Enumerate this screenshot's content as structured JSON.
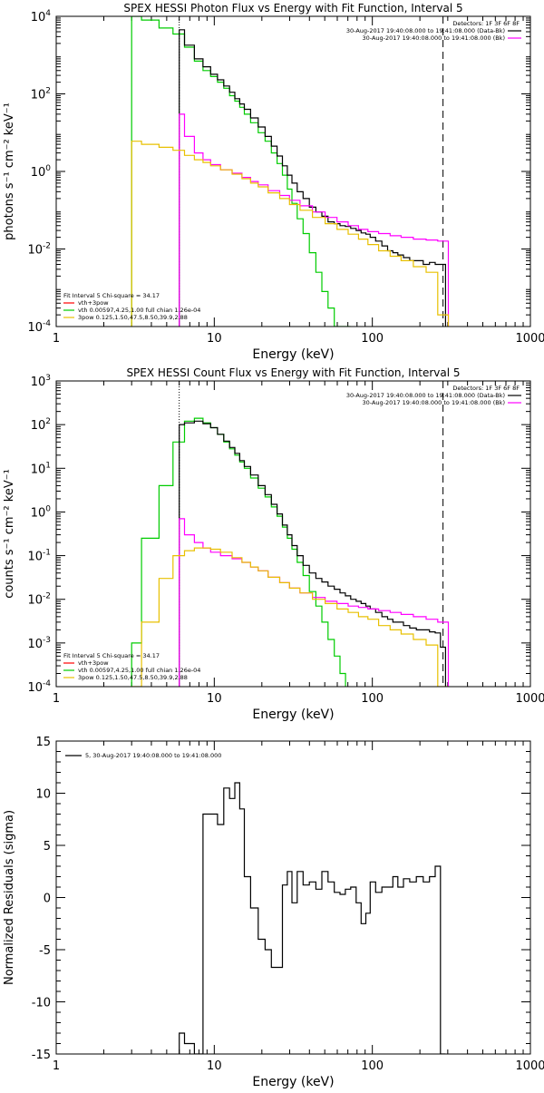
{
  "chart_data": [
    {
      "type": "line",
      "title": "SPEX HESSI Photon Flux vs Energy with Fit Function, Interval 5",
      "xlabel": "Energy (keV)",
      "ylabel": "photons s⁻¹ cm⁻² keV⁻¹",
      "xscale": "log",
      "yscale": "log",
      "xlim": [
        1,
        1000
      ],
      "ylim": [
        0.0001,
        10000
      ],
      "xticks": [
        {
          "v": 1,
          "label": "1"
        },
        {
          "v": 10,
          "label": "10"
        },
        {
          "v": 100,
          "label": "100"
        },
        {
          "v": 1000,
          "label": "1000"
        }
      ],
      "yticks": [
        {
          "v": 0.0001,
          "base": "10",
          "exp": "-4"
        },
        {
          "v": 0.01,
          "base": "10",
          "exp": "-2"
        },
        {
          "v": 1,
          "base": "10",
          "exp": "0"
        },
        {
          "v": 100,
          "base": "10",
          "exp": "2"
        },
        {
          "v": 10000,
          "base": "10",
          "exp": "4"
        }
      ],
      "legend_top": {
        "position": "top-right",
        "header": "Detectors: 1F 3F 6F 8F",
        "entries": [
          {
            "label": "30-Aug-2017 19:40:08.000 to 19:41:08.000 (Data-Bk)",
            "color": "#000000"
          },
          {
            "label": "30-Aug-2017 19:40:08.000 to 19:41:08.000 (Bk)",
            "color": "#ff00ff"
          }
        ]
      },
      "legend_bottom": {
        "position": "bottom-left",
        "header": "Fit Interval 5   Chi-square = 34.17",
        "entries": [
          {
            "label": "vth+3pow",
            "color": "#ff0000"
          },
          {
            "label": "vth 0.00597,4.25,1.00  full chian 1.26e-04",
            "color": "#00cc00"
          },
          {
            "label": "3pow 0.125,1.50,47.5,8.50,39.9,2.88",
            "color": "#e8c000"
          }
        ]
      },
      "vlines": [
        {
          "x": 6,
          "style": "dotted"
        },
        {
          "x": 280,
          "style": "dashed"
        }
      ],
      "series": [
        {
          "color": "#00cc00",
          "x": [
            3.0,
            4.0,
            5.0,
            6.0,
            7.0,
            8.0,
            9.0,
            10.0,
            11.0,
            12.0,
            13.0,
            14.0,
            15.0,
            16.0,
            18.0,
            20.0,
            22.0,
            24.0,
            26.0,
            28.0,
            30.0,
            32.0,
            35.0,
            38.0,
            42.0,
            46.0,
            50.0,
            55.0,
            60.0,
            65.0,
            70.0
          ],
          "y": [
            10000,
            8000,
            5000,
            3500,
            1600,
            700,
            400,
            280,
            200,
            140,
            90,
            65,
            45,
            30,
            18,
            10,
            6,
            3,
            1.6,
            0.8,
            0.35,
            0.15,
            0.06,
            0.025,
            0.008,
            0.0025,
            0.0008,
            0.0003,
            0.0001,
            4e-05,
            4e-05
          ]
        },
        {
          "color": "#000000",
          "x": [
            6.0,
            7.0,
            8.0,
            9.0,
            10.0,
            11.0,
            12.0,
            13.0,
            14.0,
            15.0,
            16.0,
            18.0,
            20.0,
            22.0,
            24.0,
            26.0,
            28.0,
            30.0,
            32.0,
            35.0,
            38.0,
            42.0,
            46.0,
            50.0,
            55.0,
            60.0,
            65.0,
            70.0,
            76.0,
            82.0,
            88.0,
            94.0,
            100.0,
            110.0,
            120.0,
            130.0,
            140.0,
            150.0,
            165.0,
            180.0,
            200.0,
            220.0,
            240.0,
            260.0,
            280.0
          ],
          "y": [
            4500,
            1800,
            800,
            500,
            320,
            230,
            160,
            110,
            75,
            55,
            40,
            24,
            14,
            8,
            4.5,
            2.5,
            1.4,
            0.8,
            0.5,
            0.3,
            0.2,
            0.12,
            0.09,
            0.07,
            0.05,
            0.045,
            0.04,
            0.038,
            0.034,
            0.03,
            0.026,
            0.024,
            0.02,
            0.016,
            0.012,
            0.009,
            0.008,
            0.007,
            0.006,
            0.005,
            0.005,
            0.004,
            0.0045,
            0.004,
            0.004
          ]
        },
        {
          "color": "#ff00ff",
          "x": [
            6.0,
            7.0,
            8.0,
            9.0,
            10.0,
            12.0,
            14.0,
            16.0,
            18.0,
            20.0,
            24.0,
            28.0,
            32.0,
            38.0,
            46.0,
            55.0,
            65.0,
            76.0,
            88.0,
            100.0,
            120.0,
            140.0,
            165.0,
            200.0,
            240.0,
            280.0
          ],
          "y": [
            30,
            8,
            3,
            2,
            1.5,
            1.1,
            0.9,
            0.7,
            0.55,
            0.45,
            0.32,
            0.24,
            0.18,
            0.13,
            0.09,
            0.065,
            0.05,
            0.04,
            0.032,
            0.028,
            0.025,
            0.022,
            0.02,
            0.018,
            0.017,
            0.016
          ]
        },
        {
          "color": "#e8c000",
          "x": [
            3.0,
            4.0,
            5.0,
            6.0,
            7.0,
            8.0,
            9.0,
            10.0,
            12.0,
            14.0,
            16.0,
            18.0,
            20.0,
            24.0,
            28.0,
            32.0,
            38.0,
            46.0,
            55.0,
            65.0,
            76.0,
            88.0,
            100.0,
            120.0,
            140.0,
            165.0,
            200.0,
            240.0,
            280.0
          ],
          "y": [
            6,
            5,
            4.2,
            3.5,
            2.6,
            2,
            1.7,
            1.4,
            1.1,
            0.85,
            0.65,
            0.5,
            0.4,
            0.28,
            0.2,
            0.14,
            0.1,
            0.065,
            0.045,
            0.032,
            0.024,
            0.018,
            0.013,
            0.009,
            0.0065,
            0.005,
            0.0035,
            0.0025,
            0.0002
          ]
        }
      ]
    },
    {
      "type": "line",
      "title": "SPEX HESSI Count Flux vs Energy with Fit Function, Interval 5",
      "xlabel": "Energy (keV)",
      "ylabel": "counts s⁻¹ cm⁻² keV⁻¹",
      "xscale": "log",
      "yscale": "log",
      "xlim": [
        1,
        1000
      ],
      "ylim": [
        0.0001,
        1000
      ],
      "xticks": [
        {
          "v": 1,
          "label": "1"
        },
        {
          "v": 10,
          "label": "10"
        },
        {
          "v": 100,
          "label": "100"
        },
        {
          "v": 1000,
          "label": "1000"
        }
      ],
      "yticks": [
        {
          "v": 0.0001,
          "base": "10",
          "exp": "-4"
        },
        {
          "v": 0.001,
          "base": "10",
          "exp": "-3"
        },
        {
          "v": 0.01,
          "base": "10",
          "exp": "-2"
        },
        {
          "v": 0.1,
          "base": "10",
          "exp": "-1"
        },
        {
          "v": 1,
          "base": "10",
          "exp": "0"
        },
        {
          "v": 10,
          "base": "10",
          "exp": "1"
        },
        {
          "v": 100,
          "base": "10",
          "exp": "2"
        },
        {
          "v": 1000,
          "base": "10",
          "exp": "3"
        }
      ],
      "legend_top": {
        "position": "top-right",
        "header": "Detectors: 1F 3F 6F 8F",
        "entries": [
          {
            "label": "30-Aug-2017 19:40:08.000 to 19:41:08.000 (Data-Bk)",
            "color": "#000000"
          },
          {
            "label": "30-Aug-2017 19:40:08.000 to 19:41:08.000 (Bk)",
            "color": "#ff00ff"
          }
        ]
      },
      "legend_bottom": {
        "position": "bottom-left",
        "header": "Fit Interval 5   Chi-square = 34.17",
        "entries": [
          {
            "label": "vth+3pow",
            "color": "#ff0000"
          },
          {
            "label": "vth 0.00597,4.25,1.00  full chian 1.26e-04",
            "color": "#00cc00"
          },
          {
            "label": "3pow 0.125,1.50,47.5,8.50,39.9,2.88",
            "color": "#e8c000"
          }
        ]
      },
      "vlines": [
        {
          "x": 6,
          "style": "dotted"
        },
        {
          "x": 280,
          "style": "dashed"
        }
      ],
      "series": [
        {
          "color": "#00cc00",
          "x": [
            3.0,
            4.0,
            5.0,
            6.0,
            7.0,
            8.0,
            9.0,
            10.0,
            11.0,
            12.0,
            13.0,
            14.0,
            15.0,
            16.0,
            18.0,
            20.0,
            22.0,
            24.0,
            26.0,
            28.0,
            30.0,
            32.0,
            35.0,
            38.0,
            42.0,
            46.0,
            50.0,
            55.0,
            60.0,
            65.0
          ],
          "y": [
            0.001,
            0.25,
            4,
            40,
            120,
            140,
            110,
            85,
            60,
            40,
            28,
            20,
            14,
            10,
            6,
            3.5,
            2.2,
            1.3,
            0.8,
            0.45,
            0.25,
            0.14,
            0.07,
            0.035,
            0.015,
            0.007,
            0.003,
            0.0012,
            0.0005,
            0.0002
          ]
        },
        {
          "color": "#000000",
          "x": [
            6.0,
            7.0,
            8.0,
            9.0,
            10.0,
            11.0,
            12.0,
            13.0,
            14.0,
            15.0,
            16.0,
            18.0,
            20.0,
            22.0,
            24.0,
            26.0,
            28.0,
            30.0,
            32.0,
            35.0,
            38.0,
            42.0,
            46.0,
            50.0,
            55.0,
            60.0,
            65.0,
            70.0,
            76.0,
            82.0,
            88.0,
            94.0,
            100.0,
            110.0,
            120.0,
            130.0,
            140.0,
            150.0,
            165.0,
            180.0,
            200.0,
            220.0,
            240.0,
            260.0,
            280.0
          ],
          "y": [
            100,
            110,
            120,
            105,
            85,
            60,
            42,
            30,
            22,
            15,
            11,
            7,
            4,
            2.5,
            1.5,
            0.9,
            0.5,
            0.3,
            0.17,
            0.1,
            0.06,
            0.04,
            0.03,
            0.025,
            0.02,
            0.017,
            0.014,
            0.012,
            0.01,
            0.009,
            0.008,
            0.007,
            0.006,
            0.005,
            0.004,
            0.0035,
            0.003,
            0.003,
            0.0025,
            0.0022,
            0.002,
            0.002,
            0.0018,
            0.0017,
            0.0008
          ]
        },
        {
          "color": "#ff00ff",
          "x": [
            6.0,
            7.0,
            8.0,
            9.0,
            10.0,
            12.0,
            14.0,
            16.0,
            18.0,
            20.0,
            24.0,
            28.0,
            32.0,
            38.0,
            46.0,
            55.0,
            65.0,
            76.0,
            88.0,
            100.0,
            120.0,
            140.0,
            165.0,
            200.0,
            240.0,
            280.0
          ],
          "y": [
            0.7,
            0.3,
            0.2,
            0.15,
            0.12,
            0.1,
            0.085,
            0.07,
            0.055,
            0.045,
            0.032,
            0.024,
            0.018,
            0.014,
            0.011,
            0.009,
            0.008,
            0.007,
            0.0065,
            0.006,
            0.0055,
            0.005,
            0.0045,
            0.004,
            0.0035,
            0.003
          ]
        },
        {
          "color": "#e8c000",
          "x": [
            3.0,
            4.0,
            5.0,
            6.0,
            7.0,
            8.0,
            9.0,
            10.0,
            12.0,
            14.0,
            16.0,
            18.0,
            20.0,
            24.0,
            28.0,
            32.0,
            38.0,
            46.0,
            55.0,
            65.0,
            76.0,
            88.0,
            100.0,
            120.0,
            140.0,
            165.0,
            200.0,
            240.0,
            280.0
          ],
          "y": [
            0.0001,
            0.003,
            0.03,
            0.1,
            0.13,
            0.15,
            0.15,
            0.14,
            0.12,
            0.09,
            0.07,
            0.055,
            0.045,
            0.032,
            0.024,
            0.018,
            0.014,
            0.01,
            0.008,
            0.006,
            0.005,
            0.004,
            0.0035,
            0.0025,
            0.002,
            0.0016,
            0.0012,
            0.0009,
            0.0001
          ]
        }
      ]
    },
    {
      "type": "line",
      "title": "",
      "xlabel": "Energy (keV)",
      "ylabel": "Normalized Residuals (sigma)",
      "xscale": "log",
      "yscale": "linear",
      "xlim": [
        1,
        1000
      ],
      "ylim": [
        -15,
        15
      ],
      "xticks": [
        {
          "v": 1,
          "label": "1"
        },
        {
          "v": 10,
          "label": "10"
        },
        {
          "v": 100,
          "label": "100"
        },
        {
          "v": 1000,
          "label": "1000"
        }
      ],
      "yticks": [
        {
          "v": -15,
          "label": "-15"
        },
        {
          "v": -10,
          "label": "-10"
        },
        {
          "v": -5,
          "label": "-5"
        },
        {
          "v": 0,
          "label": "0"
        },
        {
          "v": 5,
          "label": "5"
        },
        {
          "v": 10,
          "label": "10"
        },
        {
          "v": 15,
          "label": "15"
        }
      ],
      "legend_top": {
        "position": "top-left",
        "header": "",
        "entries": [
          {
            "label": "5, 30-Aug-2017 19:40:08.000 to 19:41:08.000",
            "color": "#000000"
          }
        ]
      },
      "series": [
        {
          "color": "#000000",
          "x": [
            6.0,
            7.0,
            8.0,
            9.0,
            10.0,
            11.0,
            12.0,
            13.0,
            14.0,
            15.0,
            16.0,
            18.0,
            20.0,
            22.0,
            24.0,
            26.0,
            28.0,
            30.0,
            32.0,
            35.0,
            38.0,
            42.0,
            46.0,
            50.0,
            55.0,
            60.0,
            65.0,
            70.0,
            76.0,
            82.0,
            88.0,
            94.0,
            100.0,
            110.0,
            120.0,
            130.0,
            140.0,
            150.0,
            165.0,
            180.0,
            200.0,
            220.0,
            240.0,
            260.0,
            280.0
          ],
          "y": [
            -13,
            -14,
            -16,
            8,
            8,
            7,
            10.5,
            9.5,
            11,
            8.5,
            2,
            -1,
            -4,
            -5,
            -6.7,
            -6.7,
            1.2,
            2.5,
            -0.5,
            2.5,
            1.2,
            1.5,
            0.8,
            2.5,
            1.5,
            0.5,
            0.3,
            0.8,
            1,
            -0.5,
            -2.5,
            -1.5,
            1.5,
            0.5,
            1,
            1,
            2,
            1,
            1.8,
            1.5,
            2,
            1.5,
            2,
            3,
            -15
          ]
        }
      ]
    }
  ]
}
